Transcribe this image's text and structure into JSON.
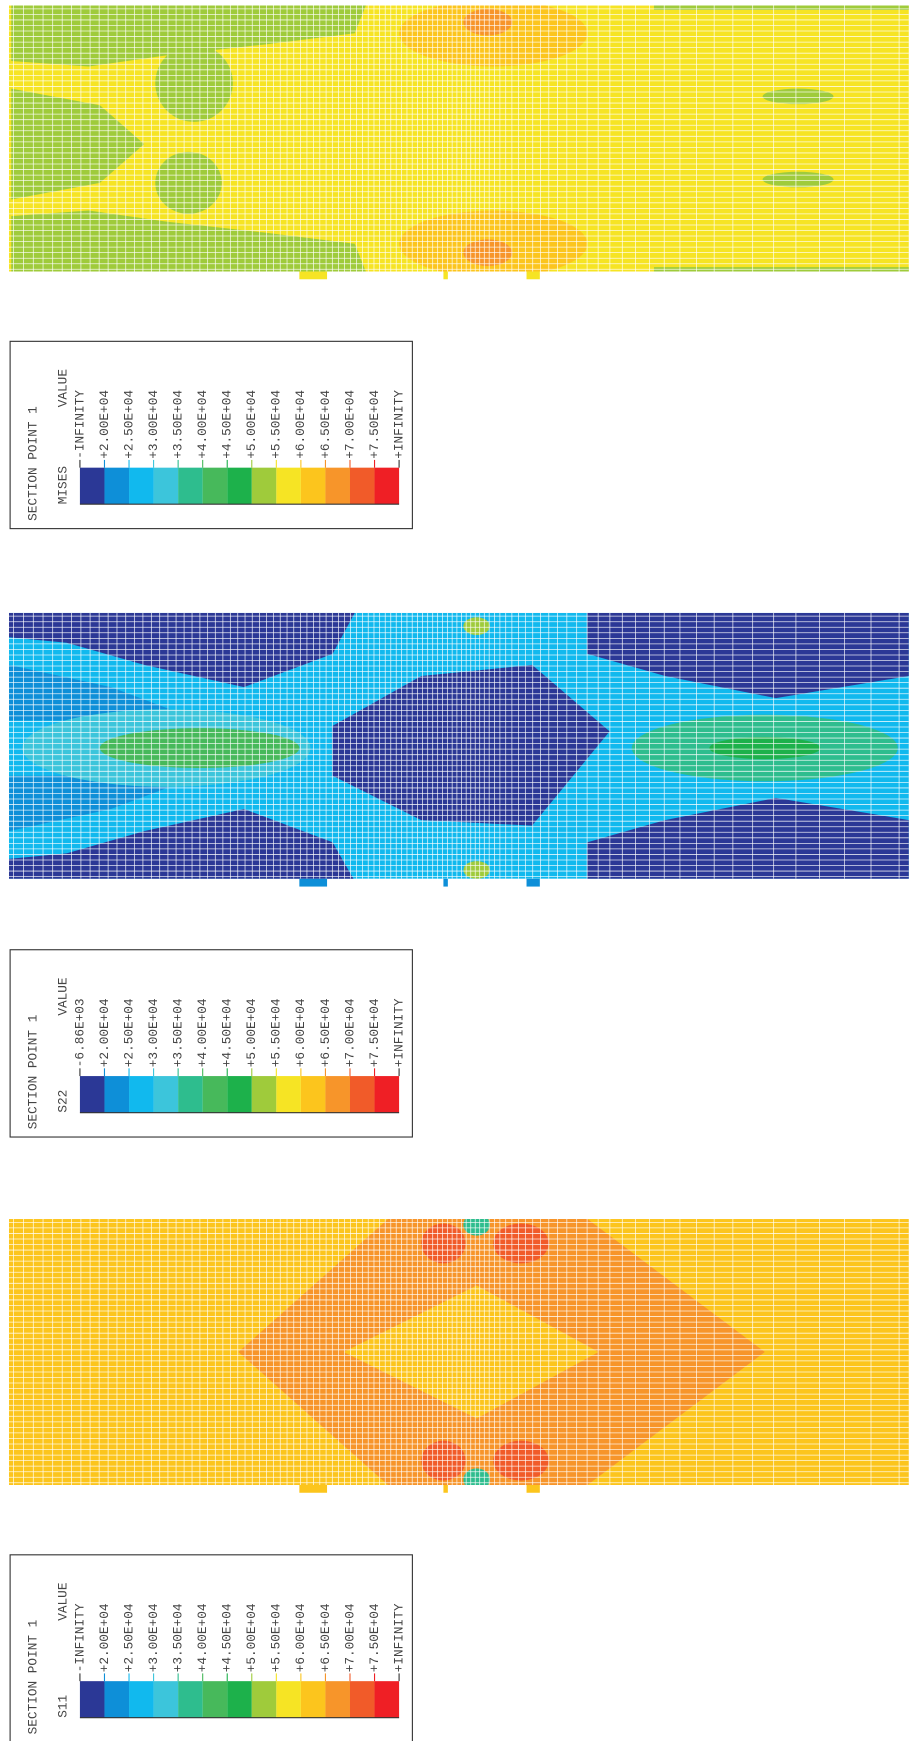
{
  "colors": [
    "#2b3896",
    "#0e8fd8",
    "#11b9ee",
    "#3cc5db",
    "#2ebd8e",
    "#47b95b",
    "#1db14b",
    "#9fcb3b",
    "#f6e424",
    "#fcc51d",
    "#f7952a",
    "#f15b29",
    "#ef1f25"
  ],
  "panels": [
    {
      "variable": "MISES",
      "section": "SECTION POINT 1",
      "value_header": "VALUE",
      "labels": [
        "-INFINITY",
        "+2.00E+04",
        "+2.50E+04",
        "+3.00E+04",
        "+3.50E+04",
        "+4.00E+04",
        "+4.50E+04",
        "+5.00E+04",
        "+5.50E+04",
        "+6.00E+04",
        "+6.50E+04",
        "+7.00E+04",
        "+7.50E+04",
        "+INFINITY"
      ]
    },
    {
      "variable": "S22",
      "section": "SECTION POINT 1",
      "value_header": "VALUE",
      "labels": [
        "-6.86E+03",
        "+2.00E+04",
        "+2.50E+04",
        "+3.00E+04",
        "+3.50E+04",
        "+4.00E+04",
        "+4.50E+04",
        "+5.00E+04",
        "+5.50E+04",
        "+6.00E+04",
        "+6.50E+04",
        "+7.00E+04",
        "+7.50E+04",
        "+INFINITY"
      ]
    },
    {
      "variable": "S11",
      "section": "SECTION POINT 1",
      "value_header": "VALUE",
      "labels": [
        "-INFINITY",
        "+2.00E+04",
        "+2.50E+04",
        "+3.00E+04",
        "+3.50E+04",
        "+4.00E+04",
        "+4.50E+04",
        "+5.00E+04",
        "+5.50E+04",
        "+6.00E+04",
        "+6.50E+04",
        "+7.00E+04",
        "+7.50E+04",
        "+INFINITY"
      ]
    }
  ]
}
